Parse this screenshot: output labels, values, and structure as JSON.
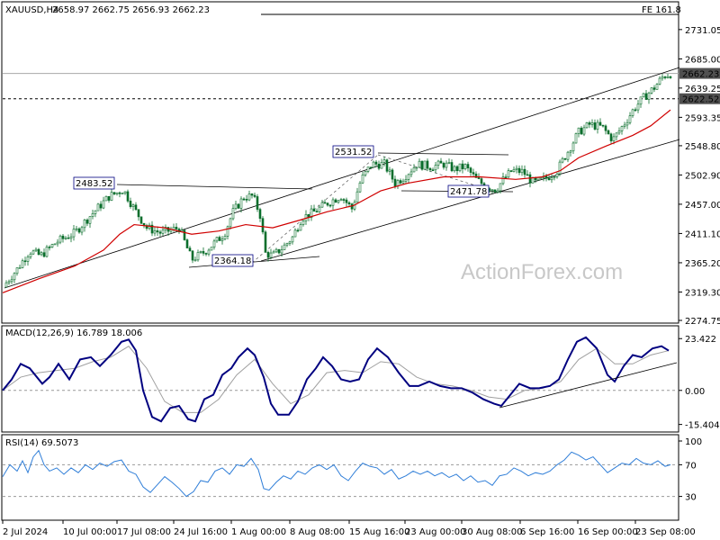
{
  "header": {
    "symbol": "XAUUSD,H4",
    "ohlc": "2658.97 2662.75 2656.93 2662.23",
    "fib_label": "FE 161.8"
  },
  "watermark": "ActionForex.com",
  "colors": {
    "candle": "#0b6e2c",
    "sma": "#d00000",
    "macd": "#000080",
    "signal": "#a0a0a0",
    "rsi": "#2f7ed8",
    "price_tag_bg": "#505050"
  },
  "chart_data": [
    {
      "type": "candlestick",
      "title": "XAUUSD,H4",
      "y_ticks": [
        2731.05,
        2685.0,
        2639.25,
        2593.35,
        2548.8,
        2502.9,
        2457.0,
        2411.1,
        2365.2,
        2319.3,
        2274.75
      ],
      "ylim": [
        2274.75,
        2752
      ],
      "x_ticks": [
        "2 Jul 2024",
        "10 Jul 00:00",
        "17 Jul 08:00",
        "24 Jul 16:00",
        "1 Aug 00:00",
        "8 Aug 08:00",
        "15 Aug 16:00",
        "23 Aug 00:00",
        "30 Aug 08:00",
        "6 Sep 16:00",
        "16 Sep 00:00",
        "23 Sep 08:00"
      ],
      "close_path": [
        [
          0,
          2327
        ],
        [
          16,
          2355
        ],
        [
          30,
          2384
        ],
        [
          42,
          2376
        ],
        [
          60,
          2398
        ],
        [
          80,
          2412
        ],
        [
          98,
          2440
        ],
        [
          118,
          2469
        ],
        [
          134,
          2480
        ],
        [
          146,
          2450
        ],
        [
          160,
          2420
        ],
        [
          176,
          2412
        ],
        [
          196,
          2420
        ],
        [
          210,
          2370
        ],
        [
          222,
          2380
        ],
        [
          232,
          2392
        ],
        [
          246,
          2410
        ],
        [
          256,
          2445
        ],
        [
          268,
          2468
        ],
        [
          278,
          2470
        ],
        [
          286,
          2440
        ],
        [
          292,
          2380
        ],
        [
          300,
          2376
        ],
        [
          312,
          2390
        ],
        [
          322,
          2405
        ],
        [
          332,
          2435
        ],
        [
          346,
          2445
        ],
        [
          362,
          2460
        ],
        [
          376,
          2470
        ],
        [
          388,
          2450
        ],
        [
          398,
          2495
        ],
        [
          410,
          2520
        ],
        [
          424,
          2520
        ],
        [
          436,
          2490
        ],
        [
          446,
          2500
        ],
        [
          460,
          2520
        ],
        [
          476,
          2516
        ],
        [
          490,
          2520
        ],
        [
          502,
          2512
        ],
        [
          514,
          2516
        ],
        [
          526,
          2496
        ],
        [
          536,
          2486
        ],
        [
          548,
          2480
        ],
        [
          556,
          2495
        ],
        [
          566,
          2510
        ],
        [
          578,
          2508
        ],
        [
          590,
          2490
        ],
        [
          604,
          2498
        ],
        [
          616,
          2510
        ],
        [
          628,
          2540
        ],
        [
          640,
          2570
        ],
        [
          652,
          2582
        ],
        [
          666,
          2578
        ],
        [
          678,
          2558
        ],
        [
          690,
          2582
        ],
        [
          702,
          2608
        ],
        [
          712,
          2624
        ],
        [
          724,
          2640
        ],
        [
          734,
          2658
        ],
        [
          742,
          2662
        ]
      ],
      "sma_path": [
        [
          0,
          2318
        ],
        [
          40,
          2340
        ],
        [
          80,
          2360
        ],
        [
          112,
          2385
        ],
        [
          130,
          2410
        ],
        [
          146,
          2425
        ],
        [
          180,
          2420
        ],
        [
          210,
          2410
        ],
        [
          240,
          2415
        ],
        [
          270,
          2425
        ],
        [
          300,
          2420
        ],
        [
          330,
          2432
        ],
        [
          360,
          2445
        ],
        [
          390,
          2455
        ],
        [
          420,
          2478
        ],
        [
          450,
          2490
        ],
        [
          490,
          2500
        ],
        [
          530,
          2500
        ],
        [
          570,
          2496
        ],
        [
          600,
          2500
        ],
        [
          620,
          2510
        ],
        [
          640,
          2530
        ],
        [
          670,
          2548
        ],
        [
          700,
          2565
        ],
        [
          720,
          2580
        ],
        [
          742,
          2605
        ]
      ],
      "levels": [
        {
          "label": "2662.23",
          "value": 2662.23,
          "style": "solid-gray"
        },
        {
          "label": "2622.52",
          "value": 2622.52,
          "style": "dashed"
        }
      ],
      "annotations": [
        "2483.52",
        "2364.18",
        "2531.52",
        "2471.78"
      ]
    },
    {
      "type": "line",
      "title": "MACD(12,26,9) 16.789 18.006",
      "y_ticks": [
        23.422,
        0.0,
        -15.404
      ],
      "ylim": [
        -18,
        28
      ],
      "macd_path": [
        [
          0,
          0
        ],
        [
          10,
          5
        ],
        [
          20,
          12
        ],
        [
          30,
          10
        ],
        [
          44,
          3
        ],
        [
          52,
          6
        ],
        [
          62,
          12
        ],
        [
          74,
          5
        ],
        [
          86,
          14
        ],
        [
          98,
          15
        ],
        [
          108,
          11
        ],
        [
          120,
          16
        ],
        [
          132,
          22
        ],
        [
          140,
          23
        ],
        [
          148,
          18
        ],
        [
          156,
          0
        ],
        [
          166,
          -12
        ],
        [
          176,
          -14
        ],
        [
          186,
          -8
        ],
        [
          196,
          -7
        ],
        [
          206,
          -13
        ],
        [
          214,
          -14
        ],
        [
          224,
          -4
        ],
        [
          234,
          -2
        ],
        [
          244,
          7
        ],
        [
          254,
          10
        ],
        [
          262,
          15
        ],
        [
          272,
          19
        ],
        [
          280,
          16
        ],
        [
          290,
          6
        ],
        [
          298,
          -6
        ],
        [
          306,
          -11
        ],
        [
          318,
          -11
        ],
        [
          328,
          -5
        ],
        [
          338,
          5
        ],
        [
          348,
          10
        ],
        [
          356,
          15
        ],
        [
          366,
          11
        ],
        [
          376,
          5
        ],
        [
          386,
          4
        ],
        [
          396,
          5
        ],
        [
          406,
          14
        ],
        [
          416,
          19
        ],
        [
          428,
          15
        ],
        [
          440,
          8
        ],
        [
          452,
          2
        ],
        [
          462,
          2
        ],
        [
          474,
          4
        ],
        [
          486,
          2
        ],
        [
          498,
          1
        ],
        [
          510,
          1
        ],
        [
          522,
          -1
        ],
        [
          534,
          -4
        ],
        [
          546,
          -6
        ],
        [
          554,
          -7
        ],
        [
          564,
          -2
        ],
        [
          574,
          3
        ],
        [
          586,
          1
        ],
        [
          596,
          1
        ],
        [
          608,
          2
        ],
        [
          618,
          5
        ],
        [
          628,
          14
        ],
        [
          638,
          22
        ],
        [
          648,
          24
        ],
        [
          660,
          19
        ],
        [
          672,
          7
        ],
        [
          680,
          4
        ],
        [
          690,
          11
        ],
        [
          700,
          16
        ],
        [
          710,
          15
        ],
        [
          722,
          19
        ],
        [
          732,
          20
        ],
        [
          740,
          18
        ]
      ],
      "signal_path": [
        [
          0,
          0
        ],
        [
          20,
          6
        ],
        [
          40,
          8
        ],
        [
          60,
          9
        ],
        [
          80,
          10
        ],
        [
          100,
          13
        ],
        [
          120,
          15
        ],
        [
          140,
          20
        ],
        [
          160,
          10
        ],
        [
          180,
          -5
        ],
        [
          200,
          -10
        ],
        [
          220,
          -10
        ],
        [
          240,
          -4
        ],
        [
          260,
          7
        ],
        [
          280,
          14
        ],
        [
          300,
          3
        ],
        [
          320,
          -6
        ],
        [
          340,
          -2
        ],
        [
          360,
          8
        ],
        [
          380,
          9
        ],
        [
          400,
          8
        ],
        [
          420,
          13
        ],
        [
          440,
          12
        ],
        [
          460,
          6
        ],
        [
          480,
          3
        ],
        [
          500,
          2
        ],
        [
          520,
          0
        ],
        [
          540,
          -3
        ],
        [
          560,
          -4
        ],
        [
          580,
          0
        ],
        [
          600,
          1
        ],
        [
          620,
          4
        ],
        [
          640,
          14
        ],
        [
          660,
          19
        ],
        [
          680,
          12
        ],
        [
          700,
          12
        ],
        [
          720,
          16
        ],
        [
          740,
          18
        ]
      ]
    },
    {
      "type": "line",
      "title": "RSI(14) 69.5073",
      "y_ticks": [
        100,
        70,
        30,
        0
      ],
      "ylim": [
        0,
        100
      ],
      "rsi_path": [
        [
          0,
          55
        ],
        [
          8,
          70
        ],
        [
          16,
          62
        ],
        [
          22,
          75
        ],
        [
          28,
          60
        ],
        [
          34,
          80
        ],
        [
          40,
          88
        ],
        [
          46,
          70
        ],
        [
          52,
          62
        ],
        [
          60,
          66
        ],
        [
          68,
          58
        ],
        [
          76,
          66
        ],
        [
          84,
          60
        ],
        [
          92,
          70
        ],
        [
          100,
          64
        ],
        [
          108,
          72
        ],
        [
          116,
          68
        ],
        [
          124,
          74
        ],
        [
          132,
          76
        ],
        [
          140,
          62
        ],
        [
          148,
          58
        ],
        [
          156,
          42
        ],
        [
          164,
          35
        ],
        [
          172,
          45
        ],
        [
          180,
          55
        ],
        [
          188,
          48
        ],
        [
          196,
          40
        ],
        [
          204,
          30
        ],
        [
          212,
          36
        ],
        [
          220,
          50
        ],
        [
          228,
          48
        ],
        [
          236,
          62
        ],
        [
          244,
          66
        ],
        [
          252,
          58
        ],
        [
          260,
          70
        ],
        [
          268,
          68
        ],
        [
          276,
          78
        ],
        [
          284,
          64
        ],
        [
          290,
          40
        ],
        [
          296,
          38
        ],
        [
          304,
          48
        ],
        [
          312,
          56
        ],
        [
          320,
          52
        ],
        [
          328,
          62
        ],
        [
          336,
          58
        ],
        [
          344,
          66
        ],
        [
          352,
          70
        ],
        [
          360,
          64
        ],
        [
          368,
          70
        ],
        [
          376,
          56
        ],
        [
          384,
          50
        ],
        [
          392,
          62
        ],
        [
          400,
          72
        ],
        [
          408,
          68
        ],
        [
          416,
          66
        ],
        [
          424,
          58
        ],
        [
          432,
          64
        ],
        [
          440,
          52
        ],
        [
          448,
          56
        ],
        [
          456,
          62
        ],
        [
          464,
          58
        ],
        [
          472,
          62
        ],
        [
          480,
          56
        ],
        [
          488,
          60
        ],
        [
          496,
          54
        ],
        [
          504,
          58
        ],
        [
          512,
          50
        ],
        [
          520,
          56
        ],
        [
          528,
          48
        ],
        [
          536,
          50
        ],
        [
          544,
          44
        ],
        [
          552,
          56
        ],
        [
          560,
          58
        ],
        [
          568,
          66
        ],
        [
          576,
          62
        ],
        [
          584,
          56
        ],
        [
          592,
          60
        ],
        [
          600,
          58
        ],
        [
          608,
          62
        ],
        [
          616,
          70
        ],
        [
          624,
          76
        ],
        [
          632,
          86
        ],
        [
          640,
          82
        ],
        [
          648,
          76
        ],
        [
          656,
          80
        ],
        [
          664,
          70
        ],
        [
          672,
          60
        ],
        [
          680,
          66
        ],
        [
          688,
          72
        ],
        [
          696,
          70
        ],
        [
          704,
          78
        ],
        [
          712,
          72
        ],
        [
          720,
          70
        ],
        [
          728,
          75
        ],
        [
          736,
          68
        ],
        [
          742,
          70
        ]
      ]
    }
  ]
}
